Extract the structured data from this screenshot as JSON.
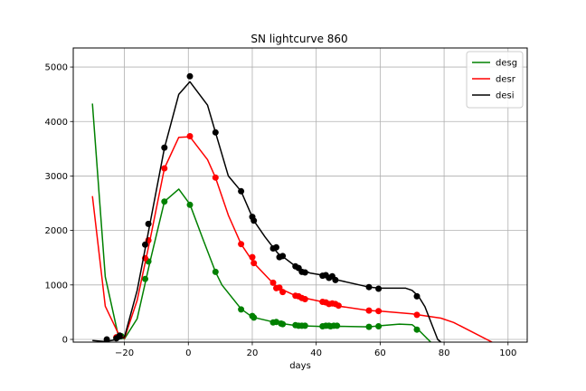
{
  "chart_data": {
    "type": "line",
    "title": "SN lightcurve 860",
    "xlabel": "days",
    "ylabel": "",
    "xlim": [
      -36,
      106
    ],
    "ylim": [
      -50,
      5350
    ],
    "xticks": [
      -20,
      0,
      20,
      40,
      60,
      80,
      100
    ],
    "yticks": [
      0,
      1000,
      2000,
      3000,
      4000,
      5000
    ],
    "grid": true,
    "legend_position": "top-right",
    "series": [
      {
        "name": "desg",
        "color": "#008000",
        "line": [
          [
            -30,
            4330
          ],
          [
            -26,
            1150
          ],
          [
            -22,
            90
          ],
          [
            -20,
            10
          ],
          [
            -16,
            380
          ],
          [
            -12,
            1420
          ],
          [
            -7.5,
            2530
          ],
          [
            -3,
            2760
          ],
          [
            0.5,
            2480
          ],
          [
            4.5,
            1850
          ],
          [
            8.5,
            1240
          ],
          [
            10.5,
            1000
          ],
          [
            16.5,
            560
          ],
          [
            20,
            410
          ],
          [
            26.5,
            320
          ],
          [
            28,
            300
          ],
          [
            34,
            250
          ],
          [
            40,
            240
          ],
          [
            44,
            230
          ],
          [
            46,
            240
          ],
          [
            56.5,
            230
          ],
          [
            60,
            250
          ],
          [
            66,
            280
          ],
          [
            70,
            270
          ],
          [
            72,
            175
          ],
          [
            76,
            -60
          ]
        ],
        "points": [
          [
            -22.5,
            30
          ],
          [
            -21,
            60
          ],
          [
            -13.5,
            1110
          ],
          [
            -12.5,
            1430
          ],
          [
            -7.5,
            2530
          ],
          [
            0.5,
            2470
          ],
          [
            8.5,
            1240
          ],
          [
            16.5,
            550
          ],
          [
            20,
            430
          ],
          [
            20.5,
            400
          ],
          [
            26.5,
            310
          ],
          [
            27.5,
            320
          ],
          [
            29,
            290
          ],
          [
            29.5,
            280
          ],
          [
            33.5,
            260
          ],
          [
            34.5,
            250
          ],
          [
            35.5,
            250
          ],
          [
            36.5,
            250
          ],
          [
            42,
            240
          ],
          [
            43,
            250
          ],
          [
            44,
            250
          ],
          [
            44.5,
            240
          ],
          [
            45.5,
            250
          ],
          [
            46.5,
            250
          ],
          [
            56.5,
            230
          ],
          [
            59.5,
            240
          ],
          [
            71.5,
            180
          ]
        ]
      },
      {
        "name": "desr",
        "color": "#ff0000",
        "line": [
          [
            -30,
            2630
          ],
          [
            -26,
            610
          ],
          [
            -22,
            120
          ],
          [
            -20,
            20
          ],
          [
            -16,
            720
          ],
          [
            -12,
            1820
          ],
          [
            -7.5,
            3140
          ],
          [
            -3,
            3710
          ],
          [
            0.5,
            3720
          ],
          [
            6,
            3300
          ],
          [
            8.5,
            2970
          ],
          [
            12.5,
            2280
          ],
          [
            16.5,
            1750
          ],
          [
            20.5,
            1400
          ],
          [
            26.5,
            1030
          ],
          [
            28,
            950
          ],
          [
            34,
            790
          ],
          [
            38,
            740
          ],
          [
            42,
            690
          ],
          [
            46,
            620
          ],
          [
            56.5,
            530
          ],
          [
            60,
            520
          ],
          [
            70,
            470
          ],
          [
            72,
            450
          ],
          [
            79,
            390
          ],
          [
            83,
            310
          ],
          [
            95,
            -50
          ]
        ],
        "points": [
          [
            -22.5,
            40
          ],
          [
            -13.5,
            1490
          ],
          [
            -12.5,
            1820
          ],
          [
            -7.5,
            3140
          ],
          [
            0.5,
            3730
          ],
          [
            8.5,
            2970
          ],
          [
            16.5,
            1750
          ],
          [
            20,
            1510
          ],
          [
            20.5,
            1400
          ],
          [
            26.5,
            1040
          ],
          [
            27.5,
            940
          ],
          [
            28.5,
            950
          ],
          [
            29.5,
            870
          ],
          [
            33.5,
            800
          ],
          [
            34.5,
            790
          ],
          [
            35.5,
            760
          ],
          [
            36.5,
            740
          ],
          [
            42,
            690
          ],
          [
            43,
            680
          ],
          [
            44,
            650
          ],
          [
            45,
            660
          ],
          [
            46,
            650
          ],
          [
            47,
            620
          ],
          [
            56.5,
            530
          ],
          [
            59.5,
            520
          ],
          [
            71.5,
            450
          ]
        ]
      },
      {
        "name": "desi",
        "color": "#000000",
        "line": [
          [
            -30,
            -20
          ],
          [
            -26,
            -40
          ],
          [
            -22,
            0
          ],
          [
            -20,
            40
          ],
          [
            -16,
            900
          ],
          [
            -12,
            2120
          ],
          [
            -7.5,
            3510
          ],
          [
            -3,
            4500
          ],
          [
            0.5,
            4730
          ],
          [
            6,
            4300
          ],
          [
            8.5,
            3800
          ],
          [
            12.5,
            3000
          ],
          [
            16.5,
            2720
          ],
          [
            20.5,
            2180
          ],
          [
            24,
            1880
          ],
          [
            26.5,
            1690
          ],
          [
            28,
            1580
          ],
          [
            30,
            1500
          ],
          [
            34,
            1320
          ],
          [
            38,
            1220
          ],
          [
            42,
            1180
          ],
          [
            46,
            1100
          ],
          [
            56.5,
            960
          ],
          [
            60,
            940
          ],
          [
            68,
            940
          ],
          [
            70,
            900
          ],
          [
            72,
            790
          ],
          [
            74,
            600
          ],
          [
            76,
            300
          ],
          [
            78,
            0
          ],
          [
            79,
            -50
          ]
        ],
        "points": [
          [
            -25.5,
            0
          ],
          [
            -22.5,
            20
          ],
          [
            -21.5,
            70
          ],
          [
            -13.5,
            1740
          ],
          [
            -12.5,
            2120
          ],
          [
            -7.5,
            3520
          ],
          [
            0.5,
            4830
          ],
          [
            8.5,
            3800
          ],
          [
            16.5,
            2720
          ],
          [
            20,
            2250
          ],
          [
            20.5,
            2180
          ],
          [
            26.5,
            1670
          ],
          [
            27.5,
            1690
          ],
          [
            28.5,
            1510
          ],
          [
            29.5,
            1530
          ],
          [
            33.5,
            1340
          ],
          [
            34.5,
            1310
          ],
          [
            35.5,
            1240
          ],
          [
            36.5,
            1230
          ],
          [
            42,
            1170
          ],
          [
            43,
            1180
          ],
          [
            44,
            1130
          ],
          [
            45,
            1160
          ],
          [
            46,
            1090
          ],
          [
            56.5,
            960
          ],
          [
            59.5,
            930
          ],
          [
            71.5,
            790
          ]
        ]
      }
    ]
  }
}
